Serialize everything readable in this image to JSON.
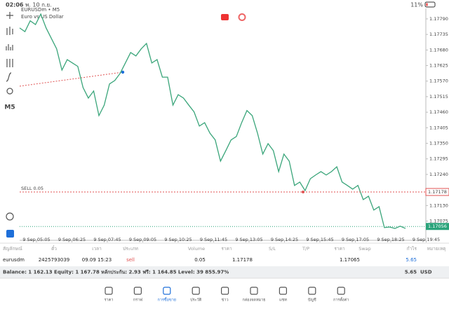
{
  "status_bar": {
    "time": "02:06",
    "date": "พ. 10 ก.ย.",
    "battery": "11%"
  },
  "toolbar": {
    "timeframe": "M5"
  },
  "chart_data": {
    "type": "line",
    "title": "EURUSDm • M5",
    "subtitle": "Euro vs US Dollar",
    "color": "#3aa57a",
    "values": [
      1.17758,
      1.17745,
      1.17783,
      1.1777,
      1.17807,
      1.17758,
      1.17721,
      1.17684,
      1.17609,
      1.17646,
      1.17634,
      1.17622,
      1.17547,
      1.1751,
      1.17535,
      1.17448,
      1.17485,
      1.1756,
      1.17572,
      1.17597,
      1.17634,
      1.17671,
      1.17659,
      1.17684,
      1.17703,
      1.17634,
      1.17646,
      1.17584,
      1.17584,
      1.17485,
      1.17522,
      1.1751,
      1.17485,
      1.17461,
      1.17411,
      1.17423,
      1.17386,
      1.17362,
      1.17287,
      1.17324,
      1.17362,
      1.17374,
      1.17423,
      1.17466,
      1.17448,
      1.17386,
      1.17312,
      1.17349,
      1.17324,
      1.1725,
      1.17312,
      1.17287,
      1.17201,
      1.17213,
      1.17183,
      1.17225,
      1.17238,
      1.1725,
      1.17238,
      1.1725,
      1.17267,
      1.17213,
      1.17201,
      1.17188,
      1.17201,
      1.17151,
      1.17163,
      1.17114,
      1.17126,
      1.17052,
      1.17054,
      1.17049,
      1.17057,
      1.17049
    ],
    "ylim": [
      1.17007,
      1.17827
    ],
    "yticks": [
      {
        "value": 1.1779,
        "label": "1.17790"
      },
      {
        "value": 1.17735,
        "label": "1.17735"
      },
      {
        "value": 1.1768,
        "label": "1.17680"
      },
      {
        "value": 1.17625,
        "label": "1.17625"
      },
      {
        "value": 1.1757,
        "label": "1.17570"
      },
      {
        "value": 1.17515,
        "label": "1.17515"
      },
      {
        "value": 1.1746,
        "label": "1.17460"
      },
      {
        "value": 1.17405,
        "label": "1.17405"
      },
      {
        "value": 1.1735,
        "label": "1.17350"
      },
      {
        "value": 1.17295,
        "label": "1.17295"
      },
      {
        "value": 1.1724,
        "label": "1.17240"
      },
      {
        "value": 1.1713,
        "label": "1.17130"
      },
      {
        "value": 1.17075,
        "label": "1.17075"
      }
    ],
    "xtick_labels": [
      "9 Sep 05:05",
      "9 Sep 06:25",
      "9 Sep 07:45",
      "9 Sep 09:05",
      "9 Sep 10:25",
      "9 Sep 11:45",
      "9 Sep 13:05",
      "9 Sep 14:25",
      "9 Sep 15:45",
      "9 Sep 17:05",
      "9 Sep 18:25",
      "9 Sep 19:45"
    ],
    "sell_line": {
      "label": "SELL 0.05",
      "value": 1.17178,
      "value_label": "1.17178",
      "color": "#e05252"
    },
    "bid_line": {
      "value": 1.17056,
      "value_label": "1.17056",
      "color": "#2aa37a"
    }
  },
  "table": {
    "headers": [
      "สัญลักษณ์",
      "ตั๋ว",
      "เวลา",
      "ประเภท",
      "Volume",
      "ราคา",
      "S/L",
      "T/P",
      "ราคา",
      "Swap",
      "กำไร",
      "หมายเหตุ"
    ],
    "rows": [
      [
        "eurusdm",
        "2425793039",
        "09.09 15:23",
        "sell",
        "0.05",
        "1.17178",
        "",
        "",
        "1.17065",
        "",
        "5.65",
        ""
      ]
    ]
  },
  "balance": {
    "text": "Balance: 1 162.13 Equity: 1 167.78 หลักประกัน: 2.93 ฟรี: 1 164.85 Level: 39 855.97%",
    "profit": "5.65",
    "currency": "USD"
  },
  "nav": [
    "ราคา",
    "กราฟ",
    "การซื้อขาย",
    "ประวัติ",
    "ข่าว",
    "กล่องจดหมาย",
    "แชท",
    "บัญชี",
    "การตั้งค่า"
  ]
}
